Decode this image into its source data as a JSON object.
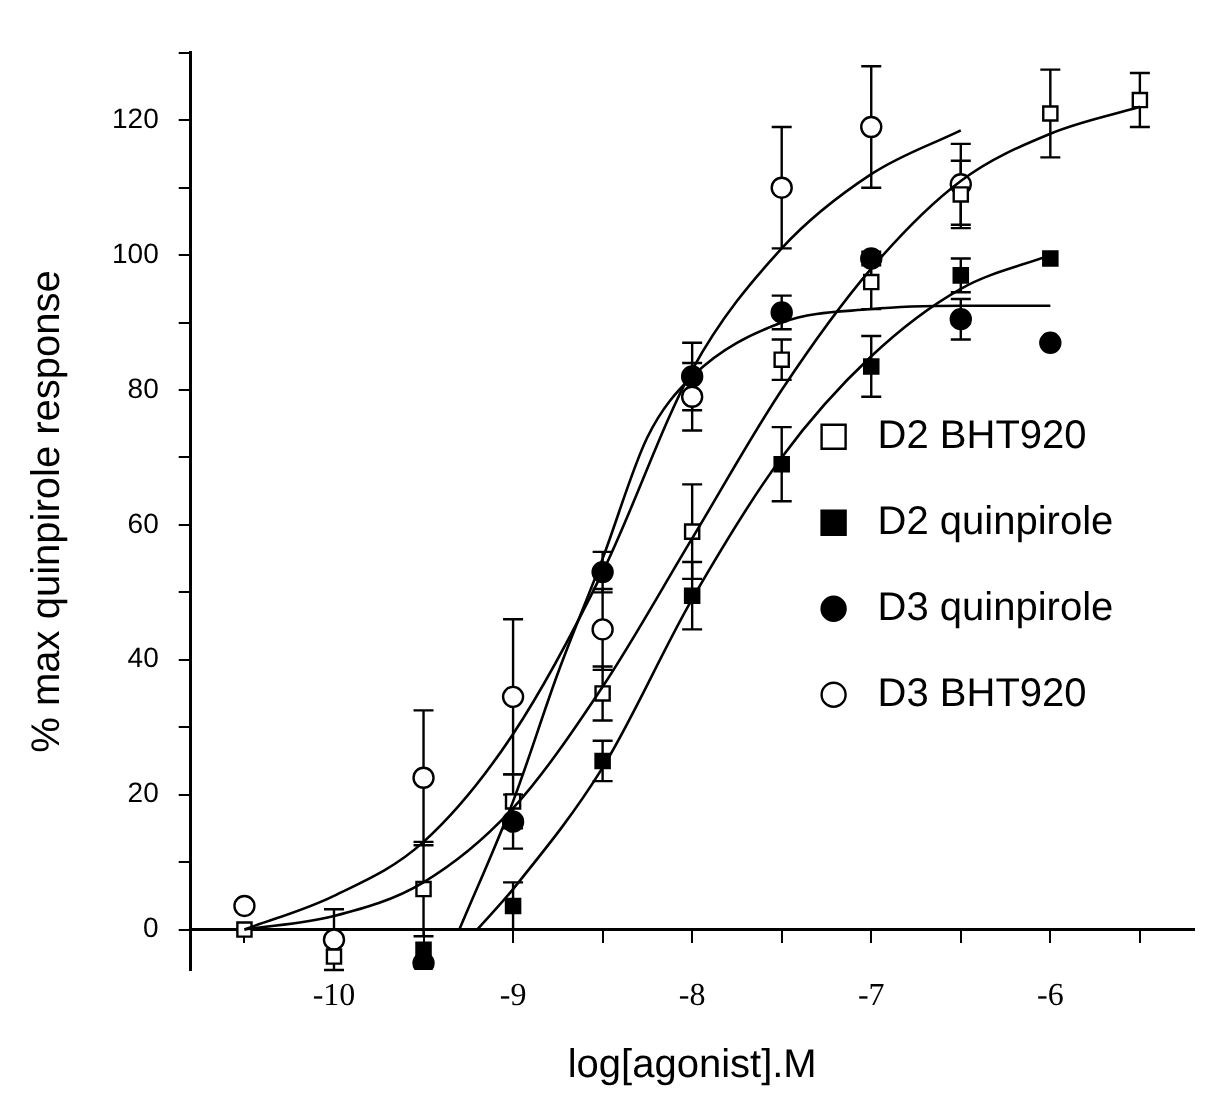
{
  "chart_data": {
    "type": "scatter",
    "xlabel": "log[agonist].M",
    "ylabel": "% max quinpirole response",
    "xlim": [
      -10.8,
      -5.2
    ],
    "ylim": [
      -6,
      130
    ],
    "xticks": [
      {
        "value": -10.5,
        "label": null
      },
      -10,
      {
        "value": -9.5,
        "label": null
      },
      -9,
      {
        "value": -8.5,
        "label": null
      },
      -8,
      {
        "value": -7.5,
        "label": null
      },
      -7,
      {
        "value": -6.5,
        "label": null
      },
      -6,
      {
        "value": -5.5,
        "label": null
      }
    ],
    "yticks": [
      0,
      {
        "value": 10,
        "label": null
      },
      20,
      {
        "value": 30,
        "label": null
      },
      40,
      {
        "value": 50,
        "label": null
      },
      60,
      {
        "value": 70,
        "label": null
      },
      80,
      {
        "value": 90,
        "label": null
      },
      100,
      {
        "value": 110,
        "label": null
      },
      120,
      {
        "value": 130,
        "label": null
      }
    ],
    "legend": "right",
    "series": [
      {
        "type": "line",
        "marker": "none",
        "color": "#000000",
        "x": [
          -10.5,
          -10,
          -9.5,
          -9,
          -8.5,
          -8,
          -7.5,
          -7,
          -6.5
        ],
        "values": [
          0,
          5,
          13,
          29,
          53,
          83,
          101,
          112,
          118.5
        ]
      },
      {
        "type": "line",
        "marker": "none",
        "color": "#000000",
        "x": [
          -10.5,
          -10,
          -9.5,
          -9,
          -8.5,
          -8,
          -7.5,
          -7,
          -6.5,
          -6,
          -5.5
        ],
        "values": [
          0,
          2,
          7,
          18,
          36,
          58,
          80,
          98,
          111,
          118,
          122
        ]
      },
      {
        "type": "line",
        "marker": "none",
        "color": "#000000",
        "x": [
          -9.2,
          -9,
          -8.5,
          -8,
          -7.5,
          -7,
          -6.5,
          -6
        ],
        "values": [
          0,
          6,
          24,
          49,
          70,
          85,
          95,
          100
        ]
      },
      {
        "type": "line",
        "marker": "none",
        "color": "#000000",
        "x": [
          -9.3,
          -9,
          -8.75,
          -8.5,
          -8.25,
          -8,
          -7.5,
          -7,
          -6.5,
          -6
        ],
        "values": [
          0,
          19,
          38,
          55,
          73,
          82,
          90,
          92,
          92.5,
          92.5
        ]
      },
      {
        "name": "D2 BHT920",
        "marker": "square",
        "color": "#ffffff",
        "x": [
          -10.5,
          -10,
          -9.5,
          -9,
          -8.5,
          -8,
          -7.5,
          -7,
          -6.5,
          -6,
          -5.5
        ],
        "values": [
          0,
          -4,
          6,
          19,
          35,
          59,
          84.5,
          96,
          109,
          121,
          123
        ],
        "errors": [
          null,
          null,
          7,
          4,
          4,
          7,
          3,
          4,
          5,
          6.5,
          4
        ]
      },
      {
        "name": "D2 quinpirole",
        "marker": "square",
        "color": "#000000",
        "x": [
          -9.5,
          -9,
          -8.5,
          -8,
          -7.5,
          -7,
          -6.5,
          -6
        ],
        "values": [
          -3,
          3.5,
          25,
          49.5,
          69,
          83.5,
          97,
          99.5
        ],
        "errors": [
          null,
          3.5,
          3,
          5,
          5.5,
          4.5,
          2.5,
          null
        ]
      },
      {
        "name": "D3 quinpirole",
        "marker": "circle",
        "color": "#000000",
        "x": [
          -9.5,
          -9,
          -8.5,
          -8,
          -7.5,
          -7,
          -6.5,
          -6
        ],
        "values": [
          -5,
          16,
          53,
          82,
          91.5,
          99.5,
          90.5,
          87
        ],
        "errors": [
          null,
          4,
          3,
          5,
          2.5,
          1,
          3,
          null
        ]
      },
      {
        "name": "D3 BHT920",
        "marker": "circle",
        "color": "#ffffff",
        "x": [
          -10.5,
          -10,
          -9.5,
          -9,
          -8.5,
          -8,
          -7.5,
          -7,
          -6.5
        ],
        "values": [
          3.5,
          -1.5,
          22.5,
          34.5,
          44.5,
          79,
          110,
          119,
          110.5
        ],
        "errors": [
          null,
          4.5,
          10,
          11.5,
          6,
          5,
          9,
          9,
          6
        ]
      }
    ]
  }
}
